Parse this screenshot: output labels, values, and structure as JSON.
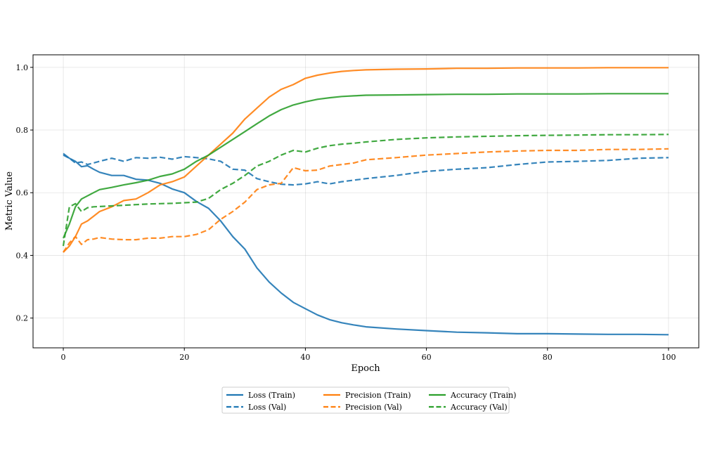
{
  "chart_data": {
    "type": "line",
    "title": "",
    "xlabel": "Epoch",
    "ylabel": "Metric Value",
    "xlim": [
      -5,
      105
    ],
    "ylim": [
      0.105,
      1.04
    ],
    "xticks": [
      0,
      20,
      40,
      60,
      80,
      100
    ],
    "yticks": [
      0.2,
      0.4,
      0.6,
      0.8,
      1.0
    ],
    "ytick_labels": [
      "0.2",
      "0.4",
      "0.6",
      "0.8",
      "1.0"
    ],
    "grid": true,
    "legend_placement": "bottom-center (below axes), 3 columns",
    "x": [
      0,
      1,
      2,
      3,
      4,
      5,
      6,
      8,
      10,
      12,
      14,
      16,
      18,
      20,
      22,
      24,
      26,
      28,
      30,
      32,
      34,
      36,
      38,
      40,
      42,
      44,
      46,
      48,
      50,
      55,
      60,
      65,
      70,
      75,
      80,
      85,
      90,
      95,
      100
    ],
    "series": [
      {
        "name": "Loss (Train)",
        "color": "#1f77b4",
        "style": "solid",
        "values": [
          0.725,
          0.71,
          0.7,
          0.683,
          0.686,
          0.675,
          0.665,
          0.655,
          0.655,
          0.643,
          0.64,
          0.63,
          0.612,
          0.6,
          0.572,
          0.55,
          0.51,
          0.46,
          0.42,
          0.36,
          0.315,
          0.28,
          0.25,
          0.23,
          0.21,
          0.195,
          0.185,
          0.178,
          0.172,
          0.165,
          0.16,
          0.155,
          0.153,
          0.15,
          0.15,
          0.149,
          0.148,
          0.148,
          0.147
        ]
      },
      {
        "name": "Loss (Val)",
        "color": "#1f77b4",
        "style": "dashed",
        "values": [
          0.72,
          0.71,
          0.695,
          0.698,
          0.69,
          0.695,
          0.7,
          0.71,
          0.7,
          0.712,
          0.71,
          0.713,
          0.707,
          0.715,
          0.712,
          0.708,
          0.7,
          0.675,
          0.672,
          0.645,
          0.635,
          0.627,
          0.625,
          0.628,
          0.635,
          0.628,
          0.635,
          0.64,
          0.645,
          0.655,
          0.668,
          0.675,
          0.68,
          0.69,
          0.698,
          0.7,
          0.703,
          0.71,
          0.712
        ]
      },
      {
        "name": "Precision (Train)",
        "color": "#ff7f0e",
        "style": "solid",
        "values": [
          0.41,
          0.43,
          0.46,
          0.5,
          0.51,
          0.525,
          0.54,
          0.555,
          0.575,
          0.58,
          0.6,
          0.625,
          0.635,
          0.65,
          0.685,
          0.72,
          0.755,
          0.79,
          0.835,
          0.87,
          0.905,
          0.93,
          0.945,
          0.965,
          0.975,
          0.982,
          0.987,
          0.99,
          0.992,
          0.994,
          0.995,
          0.997,
          0.997,
          0.998,
          0.998,
          0.998,
          0.999,
          0.999,
          0.999
        ]
      },
      {
        "name": "Precision (Val)",
        "color": "#ff7f0e",
        "style": "dashed",
        "values": [
          0.41,
          0.44,
          0.46,
          0.435,
          0.45,
          0.452,
          0.457,
          0.452,
          0.45,
          0.45,
          0.455,
          0.455,
          0.46,
          0.46,
          0.467,
          0.482,
          0.515,
          0.54,
          0.57,
          0.61,
          0.625,
          0.63,
          0.68,
          0.67,
          0.672,
          0.685,
          0.69,
          0.695,
          0.705,
          0.712,
          0.72,
          0.725,
          0.73,
          0.733,
          0.735,
          0.735,
          0.738,
          0.738,
          0.74
        ]
      },
      {
        "name": "Accuracy (Train)",
        "color": "#2ca02c",
        "style": "solid",
        "values": [
          0.455,
          0.5,
          0.555,
          0.58,
          0.59,
          0.6,
          0.61,
          0.617,
          0.625,
          0.632,
          0.64,
          0.652,
          0.66,
          0.675,
          0.7,
          0.72,
          0.745,
          0.77,
          0.795,
          0.82,
          0.845,
          0.865,
          0.88,
          0.89,
          0.898,
          0.903,
          0.907,
          0.909,
          0.911,
          0.912,
          0.913,
          0.914,
          0.914,
          0.915,
          0.915,
          0.915,
          0.916,
          0.916,
          0.916
        ]
      },
      {
        "name": "Accuracy (Val)",
        "color": "#2ca02c",
        "style": "dashed",
        "values": [
          0.43,
          0.555,
          0.565,
          0.54,
          0.552,
          0.555,
          0.556,
          0.558,
          0.56,
          0.562,
          0.564,
          0.565,
          0.566,
          0.568,
          0.57,
          0.582,
          0.61,
          0.63,
          0.655,
          0.685,
          0.7,
          0.72,
          0.735,
          0.73,
          0.742,
          0.75,
          0.755,
          0.758,
          0.762,
          0.77,
          0.775,
          0.778,
          0.78,
          0.782,
          0.783,
          0.784,
          0.785,
          0.785,
          0.786
        ]
      }
    ]
  }
}
